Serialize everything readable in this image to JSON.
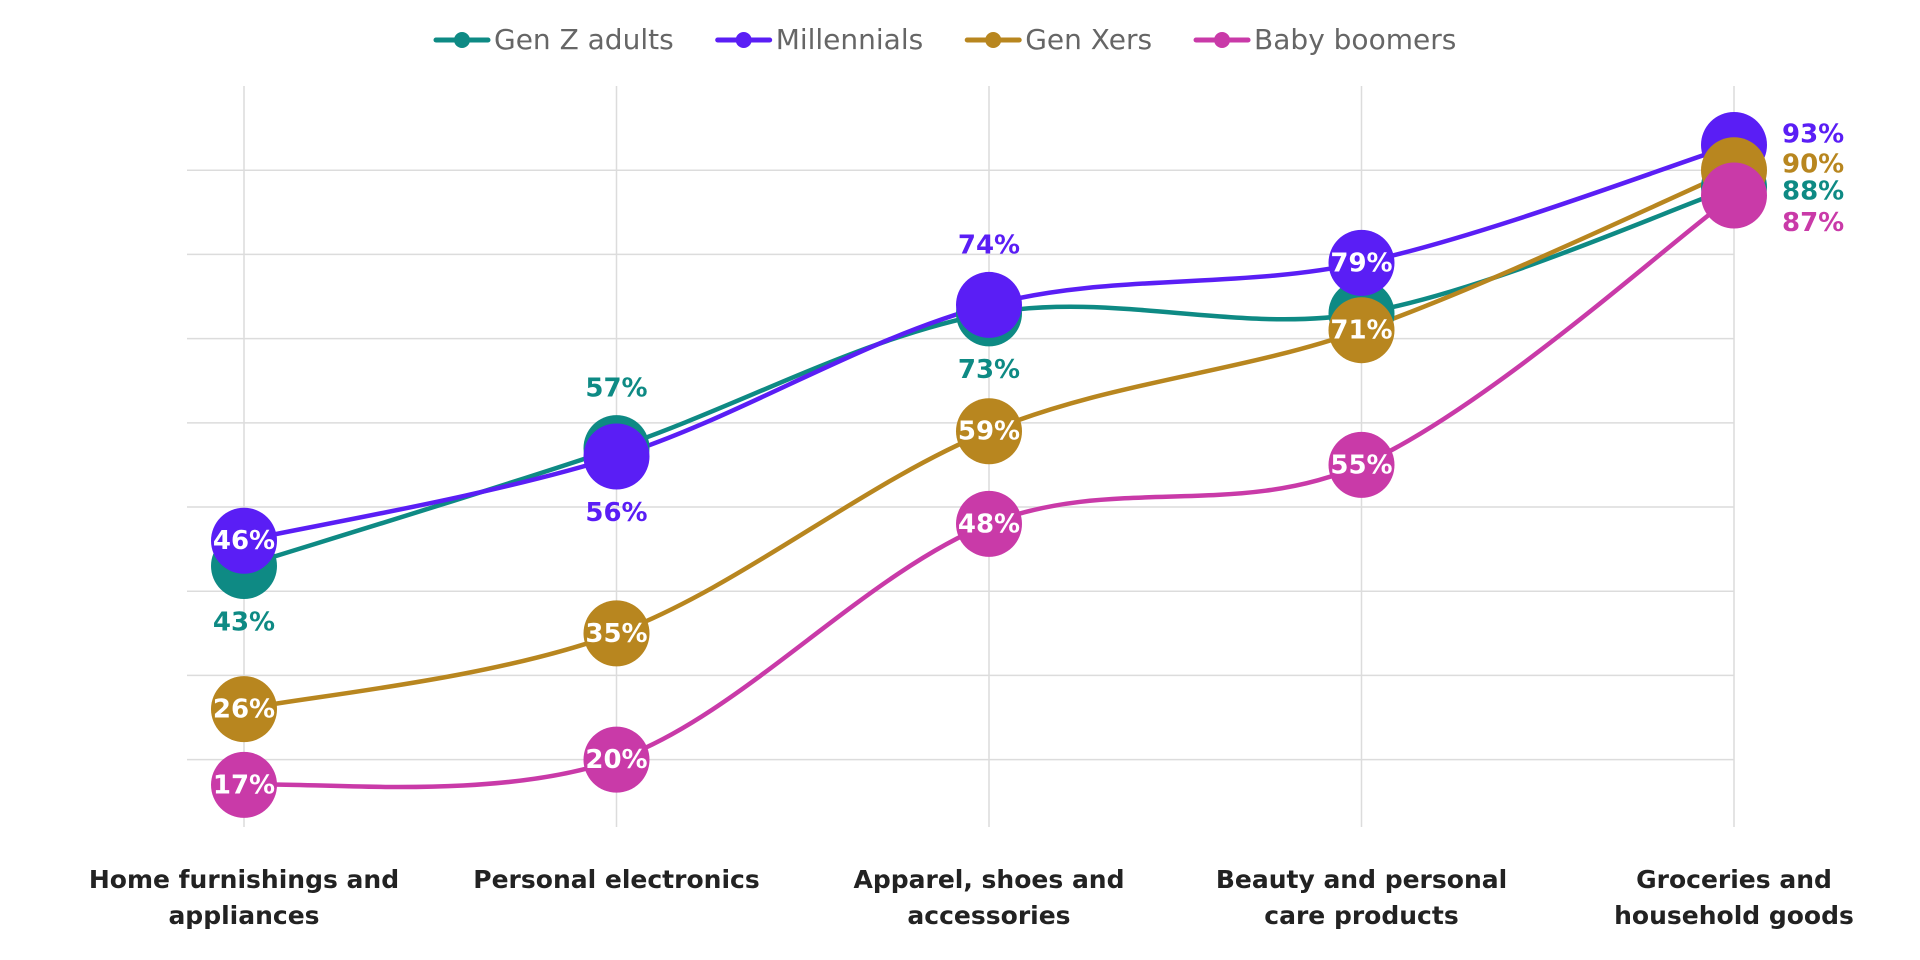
{
  "chart_data": {
    "type": "line",
    "categories": [
      "Home furnishings and appliances",
      "Personal electronics",
      "Apparel, shoes and accessories",
      "Beauty and personal care products",
      "Groceries and household goods"
    ],
    "series": [
      {
        "name": "Gen Z adults",
        "color": "#0e8a84",
        "values": [
          43,
          57,
          73,
          73,
          88
        ],
        "value_labels": [
          "43%",
          "57%",
          "73%",
          null,
          "88%"
        ]
      },
      {
        "name": "Millennials",
        "color": "#5a1ef5",
        "values": [
          46,
          56,
          74,
          79,
          93
        ],
        "value_labels": [
          "46%",
          "56%",
          "74%",
          "79%",
          "93%"
        ]
      },
      {
        "name": "Gen Xers",
        "color": "#b8861f",
        "values": [
          26,
          35,
          59,
          71,
          90
        ],
        "value_labels": [
          "26%",
          "35%",
          "59%",
          "71%",
          "90%"
        ]
      },
      {
        "name": "Baby boomers",
        "color": "#c93aa8",
        "values": [
          17,
          20,
          48,
          55,
          87
        ],
        "value_labels": [
          "17%",
          "20%",
          "48%",
          "55%",
          "87%"
        ]
      }
    ],
    "ylim": [
      12,
      100
    ],
    "yticks": [
      20,
      30,
      40,
      50,
      60,
      70,
      80,
      90
    ],
    "grid": true,
    "legend": "top"
  }
}
